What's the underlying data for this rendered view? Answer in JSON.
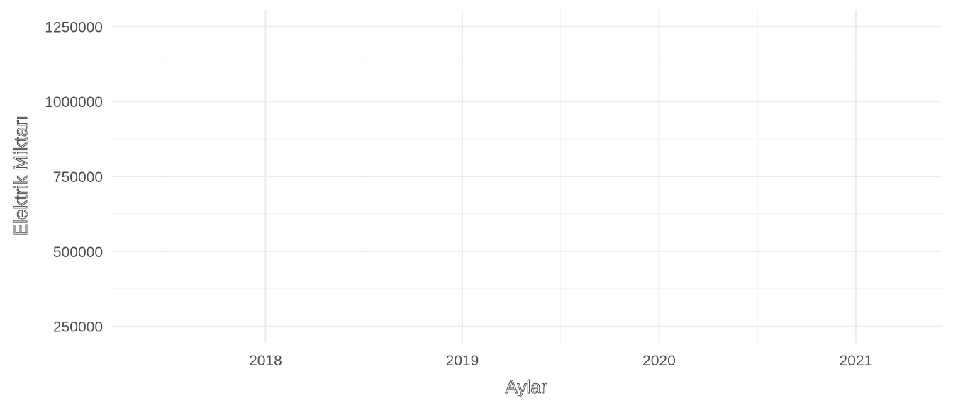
{
  "chart_data": {
    "type": "line",
    "title": "",
    "xlabel": "Aylar",
    "ylabel": "Elektrik Miktarı",
    "x_ticks": [
      "2018",
      "2019",
      "2020",
      "2021"
    ],
    "x_tick_values": [
      2018,
      2019,
      2020,
      2021
    ],
    "x_minor_values": [
      2017.5,
      2018.5,
      2019.5,
      2020.5,
      2021.5
    ],
    "xlim": [
      2017.22,
      2021.44
    ],
    "y_ticks": [
      "250000",
      "500000",
      "750000",
      "1000000",
      "1250000"
    ],
    "y_tick_values": [
      250000,
      500000,
      750000,
      1000000,
      1250000
    ],
    "y_minor_values": [
      375000,
      625000,
      875000,
      1125000
    ],
    "ylim": [
      195000,
      1305000
    ],
    "grid": true,
    "series": []
  }
}
